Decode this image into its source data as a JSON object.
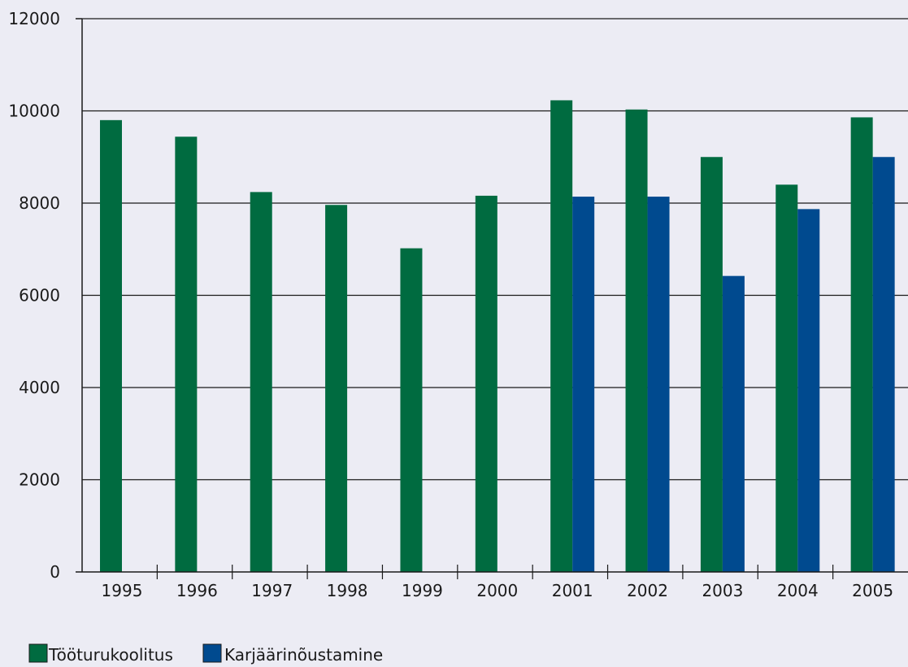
{
  "chart_data": {
    "type": "bar",
    "title": "",
    "xlabel": "",
    "ylabel": "",
    "categories": [
      "1995",
      "1996",
      "1997",
      "1998",
      "1999",
      "2000",
      "2001",
      "2002",
      "2003",
      "2004",
      "2005"
    ],
    "series": [
      {
        "name": "Tööturukoolitus",
        "color": "#006b40",
        "values": [
          9800,
          9440,
          8240,
          7960,
          7020,
          8160,
          10230,
          10030,
          9000,
          8400,
          9860
        ]
      },
      {
        "name": "Karjäärinõustamine",
        "color": "#004a8f",
        "values": [
          null,
          null,
          null,
          null,
          null,
          null,
          8140,
          8140,
          6420,
          7870,
          9000
        ]
      }
    ],
    "ylim": [
      0,
      12000
    ],
    "yticks": [
      0,
      2000,
      4000,
      6000,
      8000,
      10000,
      12000
    ],
    "grid": true,
    "legend_position": "bottom-left"
  }
}
